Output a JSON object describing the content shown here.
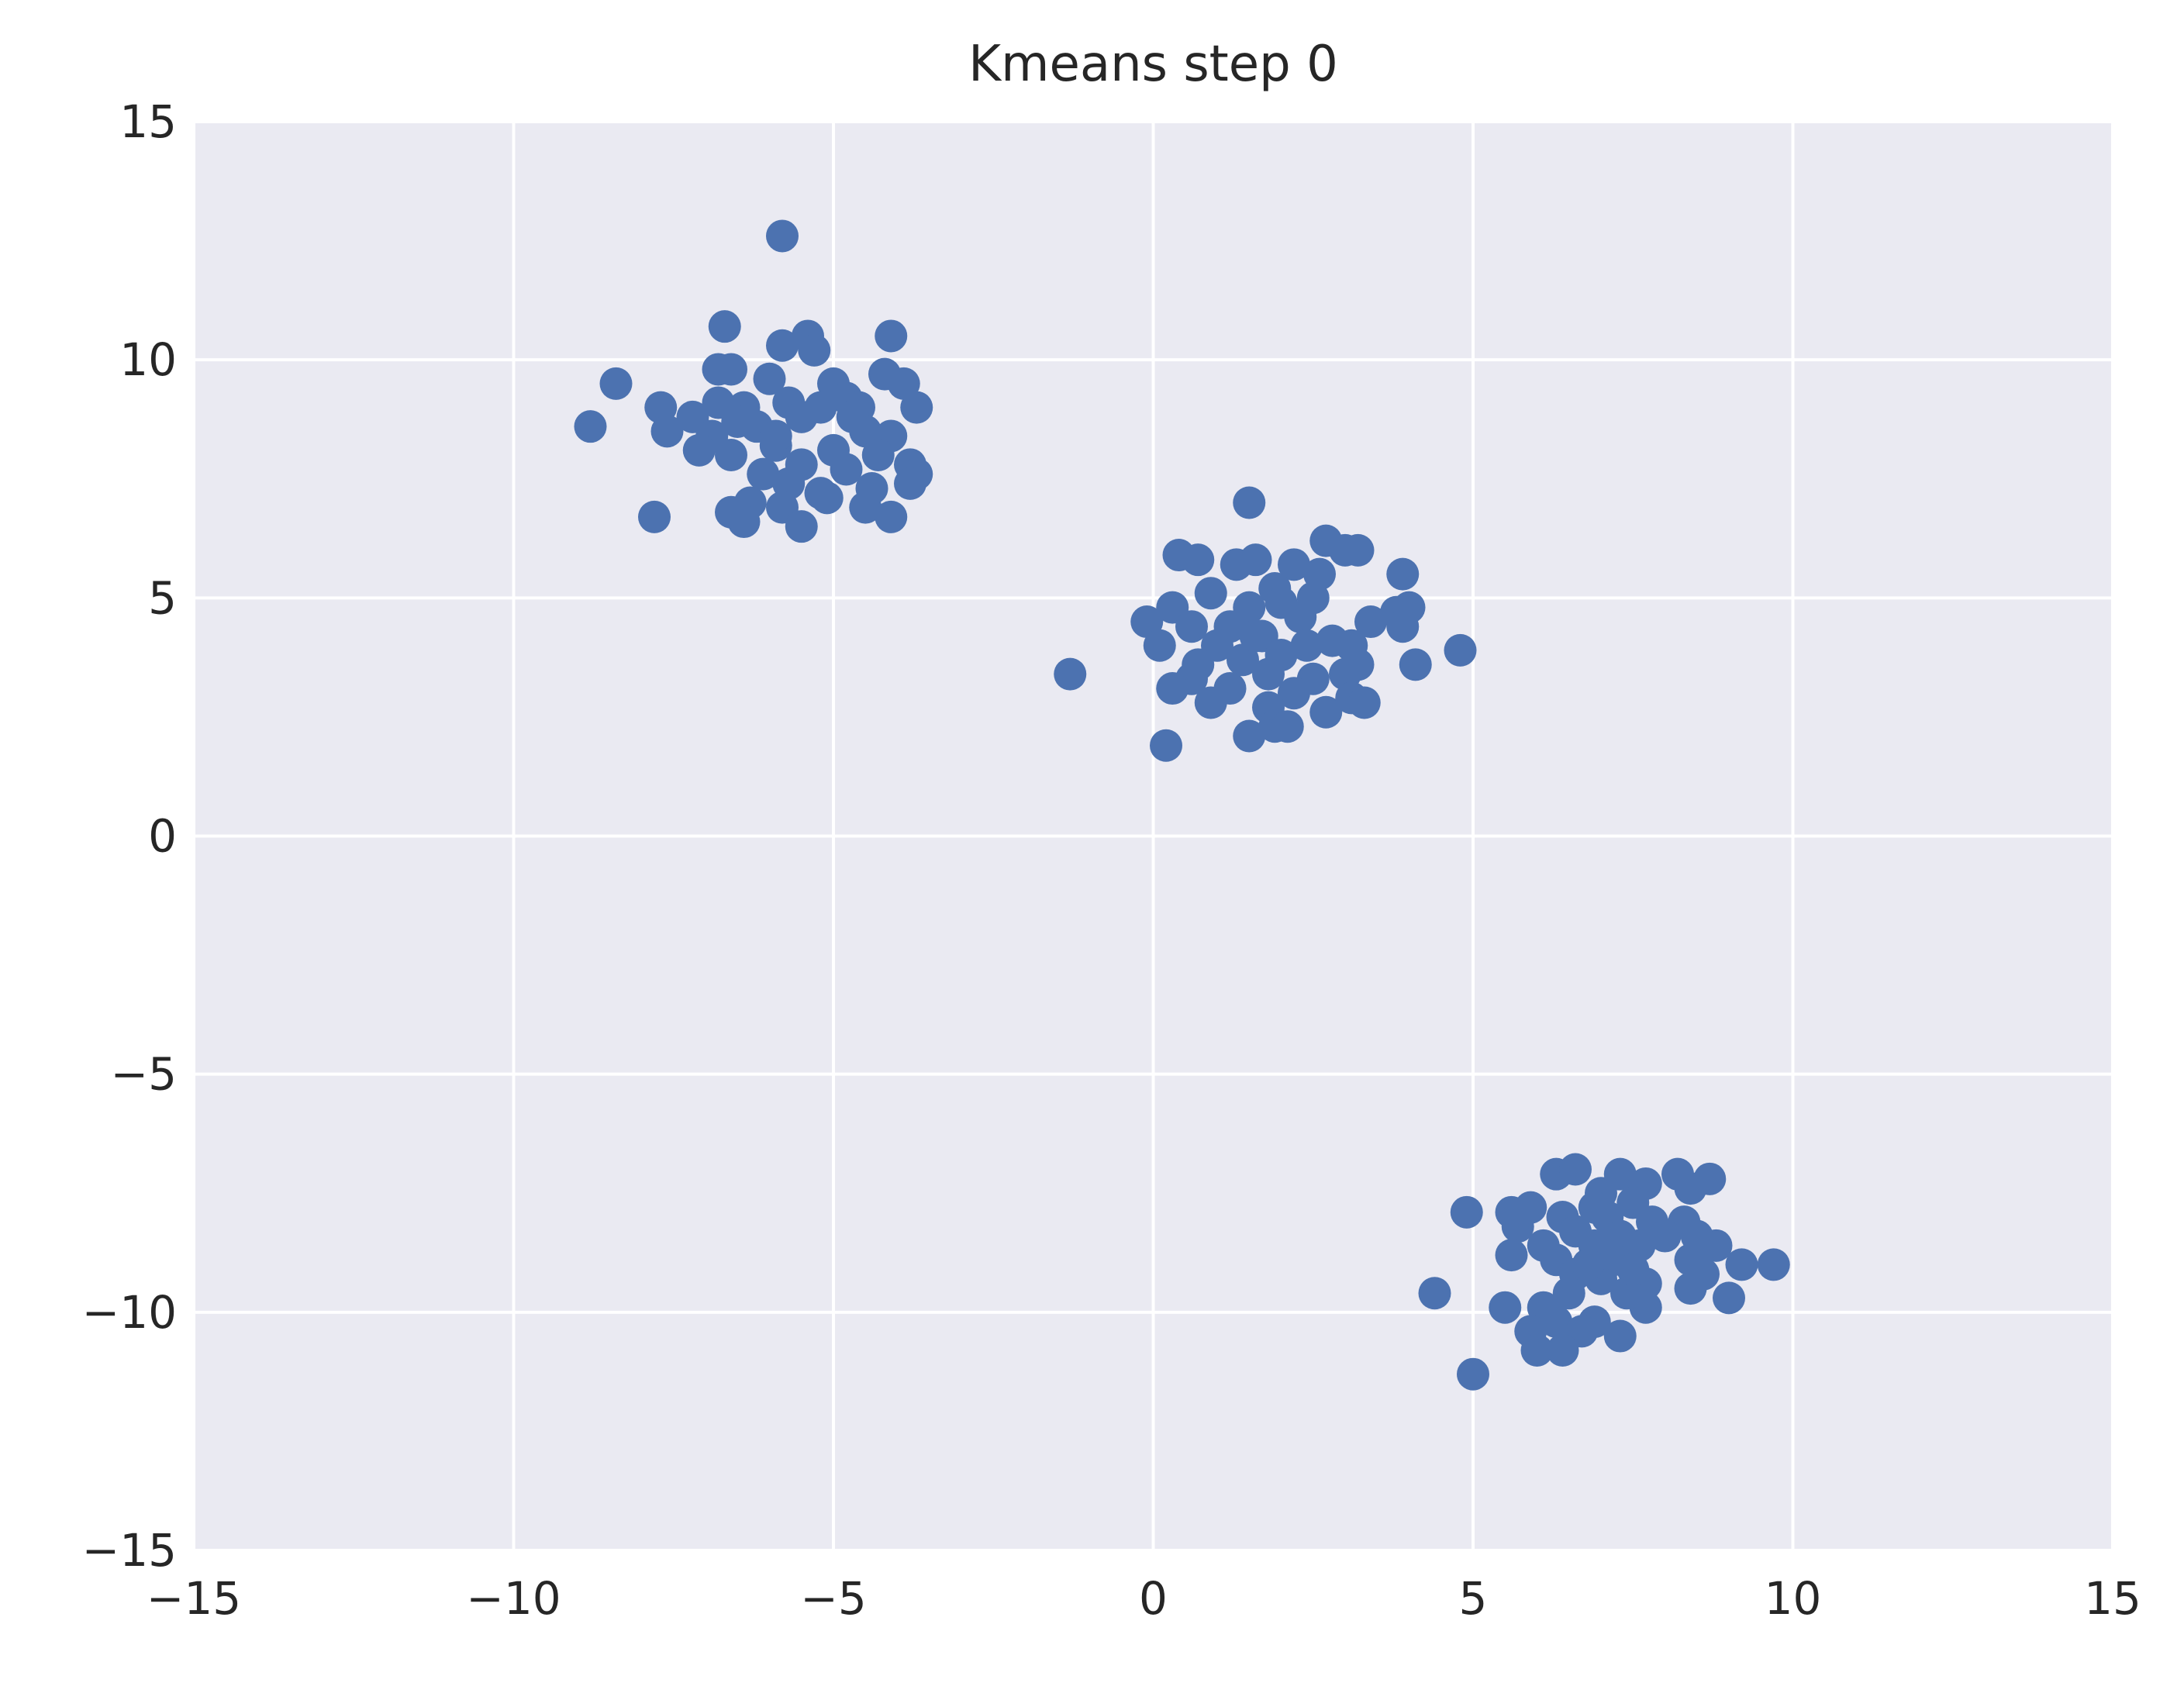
{
  "chart_data": {
    "type": "scatter",
    "title": "Kmeans step 0",
    "xlabel": "",
    "ylabel": "",
    "xlim": [
      -15,
      15
    ],
    "ylim": [
      -15,
      15
    ],
    "x_ticks": [
      -15,
      -10,
      -5,
      0,
      5,
      10,
      15
    ],
    "y_ticks": [
      -15,
      -10,
      -5,
      0,
      5,
      10,
      15
    ],
    "x_tick_labels": [
      "−15",
      "−10",
      "−5",
      "0",
      "5",
      "10",
      "15"
    ],
    "y_tick_labels": [
      "−15",
      "−10",
      "−5",
      "0",
      "5",
      "10",
      "15"
    ],
    "grid": true,
    "colors": {
      "background": "#EAEAF2",
      "grid": "#FFFFFF",
      "points": "#4C72B0",
      "text": "#262626"
    },
    "series": [
      {
        "points": [
          [
            -5.8,
            12.6
          ],
          [
            -6.7,
            10.7
          ],
          [
            -5.4,
            10.5
          ],
          [
            -4.1,
            10.5
          ],
          [
            -5.8,
            10.3
          ],
          [
            -5.3,
            10.2
          ],
          [
            -8.4,
            9.5
          ],
          [
            -6.8,
            9.8
          ],
          [
            -6.6,
            9.8
          ],
          [
            -5.0,
            9.5
          ],
          [
            -4.2,
            9.7
          ],
          [
            -3.9,
            9.5
          ],
          [
            -6.0,
            9.6
          ],
          [
            -4.8,
            9.2
          ],
          [
            -7.7,
            9.0
          ],
          [
            -7.2,
            8.8
          ],
          [
            -6.4,
            9.0
          ],
          [
            -5.7,
            9.1
          ],
          [
            -4.6,
            9.0
          ],
          [
            -3.7,
            9.0
          ],
          [
            -8.8,
            8.6
          ],
          [
            -7.6,
            8.5
          ],
          [
            -6.9,
            8.4
          ],
          [
            -6.2,
            8.6
          ],
          [
            -5.5,
            8.8
          ],
          [
            -4.5,
            8.5
          ],
          [
            -4.1,
            8.4
          ],
          [
            -7.1,
            8.1
          ],
          [
            -6.6,
            8.0
          ],
          [
            -5.9,
            8.2
          ],
          [
            -5.0,
            8.1
          ],
          [
            -4.3,
            8.0
          ],
          [
            -5.5,
            7.8
          ],
          [
            -4.8,
            7.7
          ],
          [
            -3.8,
            7.8
          ],
          [
            -6.1,
            7.6
          ],
          [
            -5.7,
            7.4
          ],
          [
            -3.7,
            7.6
          ],
          [
            -5.2,
            7.2
          ],
          [
            -4.4,
            7.3
          ],
          [
            -3.8,
            7.4
          ],
          [
            -6.3,
            7.0
          ],
          [
            -5.8,
            6.9
          ],
          [
            -5.1,
            7.1
          ],
          [
            -4.5,
            6.9
          ],
          [
            -7.8,
            6.7
          ],
          [
            -6.6,
            6.8
          ],
          [
            -6.4,
            6.6
          ],
          [
            -5.5,
            6.5
          ],
          [
            -4.1,
            6.7
          ],
          [
            -6.5,
            8.7
          ],
          [
            -5.2,
            9.0
          ],
          [
            -4.7,
            8.8
          ],
          [
            -5.9,
            8.4
          ],
          [
            -6.8,
            9.1
          ],
          [
            1.5,
            7.0
          ],
          [
            2.7,
            6.2
          ],
          [
            3.0,
            6.0
          ],
          [
            3.2,
            6.0
          ],
          [
            0.4,
            5.9
          ],
          [
            0.7,
            5.8
          ],
          [
            1.3,
            5.7
          ],
          [
            1.6,
            5.8
          ],
          [
            2.2,
            5.7
          ],
          [
            2.6,
            5.5
          ],
          [
            3.9,
            5.5
          ],
          [
            1.9,
            5.2
          ],
          [
            2.5,
            5.0
          ],
          [
            0.9,
            5.1
          ],
          [
            0.3,
            4.8
          ],
          [
            1.5,
            4.8
          ],
          [
            2.0,
            4.9
          ],
          [
            3.4,
            4.5
          ],
          [
            3.8,
            4.7
          ],
          [
            4.0,
            4.8
          ],
          [
            -0.1,
            4.5
          ],
          [
            0.6,
            4.4
          ],
          [
            1.2,
            4.4
          ],
          [
            2.3,
            4.6
          ],
          [
            3.9,
            4.4
          ],
          [
            0.1,
            4.0
          ],
          [
            1.0,
            4.0
          ],
          [
            1.7,
            4.2
          ],
          [
            2.8,
            4.1
          ],
          [
            3.1,
            4.0
          ],
          [
            4.8,
            3.9
          ],
          [
            0.7,
            3.6
          ],
          [
            1.4,
            3.7
          ],
          [
            2.0,
            3.8
          ],
          [
            3.2,
            3.6
          ],
          [
            4.1,
            3.6
          ],
          [
            -1.3,
            3.4
          ],
          [
            0.6,
            3.3
          ],
          [
            1.8,
            3.4
          ],
          [
            2.5,
            3.3
          ],
          [
            3.0,
            3.4
          ],
          [
            0.3,
            3.1
          ],
          [
            1.2,
            3.1
          ],
          [
            2.2,
            3.0
          ],
          [
            3.1,
            2.9
          ],
          [
            0.9,
            2.8
          ],
          [
            3.3,
            2.8
          ],
          [
            1.8,
            2.7
          ],
          [
            2.7,
            2.6
          ],
          [
            1.9,
            2.3
          ],
          [
            2.1,
            2.3
          ],
          [
            1.5,
            2.1
          ],
          [
            0.2,
            1.9
          ],
          [
            1.6,
            4.2
          ],
          [
            2.4,
            4.0
          ],
          [
            6.3,
            -7.1
          ],
          [
            6.6,
            -7.0
          ],
          [
            7.3,
            -7.1
          ],
          [
            8.2,
            -7.1
          ],
          [
            8.7,
            -7.2
          ],
          [
            7.7,
            -7.3
          ],
          [
            8.4,
            -7.4
          ],
          [
            7.0,
            -7.5
          ],
          [
            5.9,
            -7.8
          ],
          [
            5.6,
            -7.9
          ],
          [
            4.9,
            -7.9
          ],
          [
            7.5,
            -7.7
          ],
          [
            6.4,
            -8.0
          ],
          [
            7.1,
            -8.0
          ],
          [
            7.8,
            -8.1
          ],
          [
            8.3,
            -8.1
          ],
          [
            5.7,
            -8.2
          ],
          [
            6.6,
            -8.3
          ],
          [
            7.3,
            -8.4
          ],
          [
            8.5,
            -8.4
          ],
          [
            6.1,
            -8.6
          ],
          [
            6.9,
            -8.6
          ],
          [
            7.6,
            -8.6
          ],
          [
            8.8,
            -8.6
          ],
          [
            5.6,
            -8.8
          ],
          [
            6.3,
            -8.9
          ],
          [
            7.2,
            -8.9
          ],
          [
            8.4,
            -8.9
          ],
          [
            9.2,
            -9.0
          ],
          [
            9.7,
            -9.0
          ],
          [
            6.6,
            -9.2
          ],
          [
            7.0,
            -9.3
          ],
          [
            7.7,
            -9.4
          ],
          [
            8.6,
            -9.2
          ],
          [
            8.4,
            -9.5
          ],
          [
            6.5,
            -9.6
          ],
          [
            9.0,
            -9.7
          ],
          [
            4.4,
            -9.6
          ],
          [
            5.5,
            -9.9
          ],
          [
            6.1,
            -9.9
          ],
          [
            7.7,
            -9.9
          ],
          [
            6.3,
            -10.2
          ],
          [
            6.9,
            -10.2
          ],
          [
            5.9,
            -10.4
          ],
          [
            6.7,
            -10.4
          ],
          [
            7.3,
            -10.5
          ],
          [
            6.0,
            -10.8
          ],
          [
            6.4,
            -10.8
          ],
          [
            5.0,
            -11.3
          ],
          [
            7.0,
            -8.8
          ],
          [
            6.8,
            -9.0
          ],
          [
            7.4,
            -9.6
          ],
          [
            8.0,
            -8.4
          ],
          [
            6.9,
            -7.8
          ],
          [
            7.5,
            -9.1
          ]
        ]
      }
    ]
  }
}
